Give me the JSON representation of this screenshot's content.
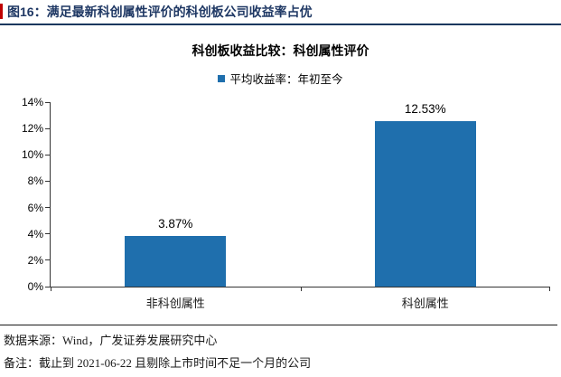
{
  "header": {
    "title": "图16：满足最新科创属性评价的科创板公司收益率占优"
  },
  "chart_data": {
    "type": "bar",
    "title": "科创板收益比较：科创属性评价",
    "legend": [
      "平均收益率：年初至今"
    ],
    "legend_position": "top",
    "categories": [
      "非科创属性",
      "科创属性"
    ],
    "values": [
      3.87,
      12.53
    ],
    "value_labels": [
      "3.87%",
      "12.53%"
    ],
    "ylim": [
      0,
      14
    ],
    "ytick_step": 2,
    "yticks": [
      "0%",
      "2%",
      "4%",
      "6%",
      "8%",
      "10%",
      "12%",
      "14%"
    ],
    "grid": false,
    "bar_color": "#1f6fad"
  },
  "footer": {
    "source": "数据来源：Wind，广发证券发展研究中心",
    "note": "备注：截止到 2021-06-22 且剔除上市时间不足一个月的公司"
  },
  "colors": {
    "bar": "#1f6fad",
    "header_navy": "#1f3864",
    "accent_red": "#c00000"
  }
}
